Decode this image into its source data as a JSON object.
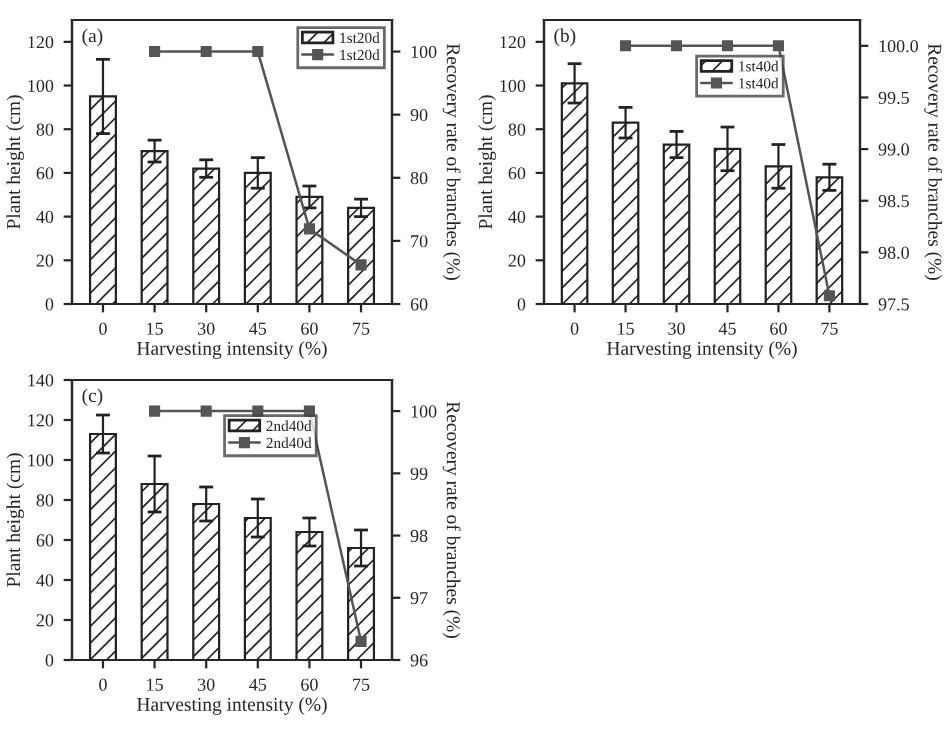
{
  "chart_data": [
    {
      "type": "bar",
      "categories": [
        "0",
        "15",
        "30",
        "45",
        "60",
        "75"
      ],
      "xlabel": "Harvesting intensity (%)",
      "ylabel": "Plant height (cm)",
      "y2label": "Recovery rate of branches (%)",
      "annotations": [
        "(a)"
      ],
      "ylim": [
        0,
        130
      ],
      "yticks": [
        0,
        20,
        40,
        60,
        80,
        100,
        120
      ],
      "y2lim": [
        60,
        105
      ],
      "y2ticks": [
        60,
        70,
        80,
        90,
        100
      ],
      "legend": "top right",
      "marker": "square",
      "series": [
        {
          "name": "1st20d",
          "color": "#222222",
          "values": [
            95,
            70,
            62,
            60,
            49,
            44
          ],
          "errors": [
            17,
            5,
            4,
            7,
            5,
            4
          ]
        },
        {
          "name": "1st20d",
          "type": "line",
          "axis": "y2",
          "color": "#555555",
          "values": [
            null,
            100,
            100,
            100,
            71.9,
            66.2
          ]
        }
      ]
    },
    {
      "type": "bar",
      "categories": [
        "0",
        "15",
        "30",
        "45",
        "60",
        "75"
      ],
      "xlabel": "Harvesting intensity (%)",
      "ylabel": "Plant height (cm)",
      "y2label": "Recovery rate of branches (%)",
      "annotations": [
        "(b)"
      ],
      "ylim": [
        0,
        130
      ],
      "yticks": [
        0,
        20,
        40,
        60,
        80,
        100,
        120
      ],
      "y2lim": [
        97.5,
        100.25
      ],
      "y2ticks": [
        {
          "value": 97.5,
          "label": "97.5"
        },
        {
          "value": 98,
          "label": "98.0"
        },
        {
          "value": 98.5,
          "label": "98.5"
        },
        {
          "value": 99,
          "label": "99.0"
        },
        {
          "value": 99.5,
          "label": "99.5"
        },
        {
          "value": 100,
          "label": "100.0"
        }
      ],
      "legend": "top",
      "marker": "square",
      "series": [
        {
          "name": "1st40d",
          "color": "#222222",
          "values": [
            101,
            83,
            73,
            71,
            63,
            58
          ],
          "errors": [
            9,
            7,
            6,
            10,
            10,
            6
          ]
        },
        {
          "name": "1st40d",
          "type": "line",
          "axis": "y2",
          "color": "#555555",
          "values": [
            null,
            100,
            100,
            100,
            100,
            97.58
          ]
        }
      ]
    },
    {
      "type": "bar",
      "categories": [
        "0",
        "15",
        "30",
        "45",
        "60",
        "75"
      ],
      "xlabel": "Harvesting intensity (%)",
      "ylabel": "Plant height (cm)",
      "y2label": "Recovery rate of branches (%)",
      "annotations": [
        "(c)"
      ],
      "ylim": [
        0,
        140
      ],
      "yticks": [
        0,
        20,
        40,
        60,
        80,
        100,
        120,
        140
      ],
      "y2lim": [
        96,
        100.5
      ],
      "y2ticks": [
        96,
        97,
        98,
        99,
        100
      ],
      "legend": "top",
      "marker": "square",
      "series": [
        {
          "name": "2nd40d",
          "color": "#222222",
          "values": [
            113,
            88,
            78,
            71,
            64,
            56
          ],
          "errors": [
            9.5,
            14,
            8.5,
            9.5,
            7,
            9
          ]
        },
        {
          "name": "2nd40d",
          "type": "line",
          "axis": "y2",
          "color": "#555555",
          "values": [
            null,
            100,
            100,
            100,
            100,
            96.3
          ]
        }
      ]
    }
  ]
}
